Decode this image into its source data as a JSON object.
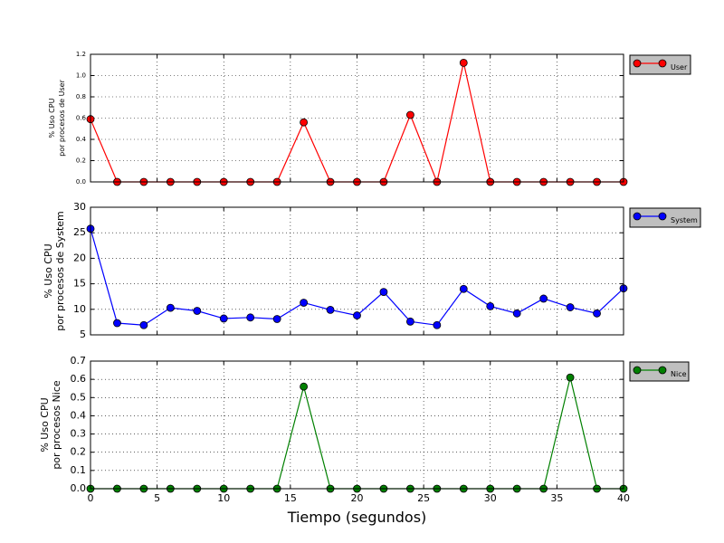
{
  "chart_data": [
    {
      "type": "line",
      "ylabel_line1": "% Uso CPU",
      "ylabel_line2": "por procesos de User",
      "ylim": [
        0,
        1.2
      ],
      "yticks": [
        "0.0",
        "0.2",
        "0.4",
        "0.6",
        "0.8",
        "1.0",
        "1.2"
      ],
      "xlim": [
        0,
        40
      ],
      "grid": true,
      "legend_placement": "outside-right",
      "series": [
        {
          "name": "User",
          "color": "#ff0000",
          "x": [
            0,
            2,
            4,
            6,
            8,
            10,
            12,
            14,
            16,
            18,
            20,
            22,
            24,
            26,
            28,
            30,
            32,
            34,
            36,
            38,
            40
          ],
          "values": [
            0.59,
            0,
            0,
            0,
            0,
            0,
            0,
            0,
            0.56,
            0,
            0,
            0,
            0.63,
            0,
            1.12,
            0,
            0,
            0,
            0,
            0,
            0
          ]
        }
      ]
    },
    {
      "type": "line",
      "ylabel_line1": "% Uso CPU",
      "ylabel_line2": "por procesos de System",
      "ylim": [
        5,
        30
      ],
      "yticks": [
        "5",
        "10",
        "15",
        "20",
        "25",
        "30"
      ],
      "xlim": [
        0,
        40
      ],
      "grid": true,
      "legend_placement": "outside-right",
      "series": [
        {
          "name": "System",
          "color": "#0000ff",
          "x": [
            0,
            2,
            4,
            6,
            8,
            10,
            12,
            14,
            16,
            18,
            20,
            22,
            24,
            26,
            28,
            30,
            32,
            34,
            36,
            38,
            40
          ],
          "values": [
            25.8,
            7.3,
            6.9,
            10.3,
            9.7,
            8.2,
            8.4,
            8.1,
            11.3,
            9.9,
            8.8,
            13.4,
            7.6,
            6.9,
            14.0,
            10.6,
            9.2,
            12.1,
            10.4,
            9.2,
            14.1
          ]
        }
      ]
    },
    {
      "type": "line",
      "ylabel_line1": "% Uso CPU",
      "ylabel_line2": "por procesos Nice",
      "ylim": [
        0,
        0.7
      ],
      "yticks": [
        "0.0",
        "0.1",
        "0.2",
        "0.3",
        "0.4",
        "0.5",
        "0.6",
        "0.7"
      ],
      "xlim": [
        0,
        40
      ],
      "xticks": [
        "0",
        "5",
        "10",
        "15",
        "20",
        "25",
        "30",
        "35",
        "40"
      ],
      "xlabel": "Tiempo (segundos)",
      "grid": true,
      "legend_placement": "outside-right",
      "series": [
        {
          "name": "Nice",
          "color": "#008000",
          "x": [
            0,
            2,
            4,
            6,
            8,
            10,
            12,
            14,
            16,
            18,
            20,
            22,
            24,
            26,
            28,
            30,
            32,
            34,
            36,
            38,
            40
          ],
          "values": [
            0,
            0,
            0,
            0,
            0,
            0,
            0,
            0,
            0.56,
            0,
            0,
            0,
            0,
            0,
            0,
            0,
            0,
            0,
            0.61,
            0,
            0
          ]
        }
      ]
    }
  ]
}
